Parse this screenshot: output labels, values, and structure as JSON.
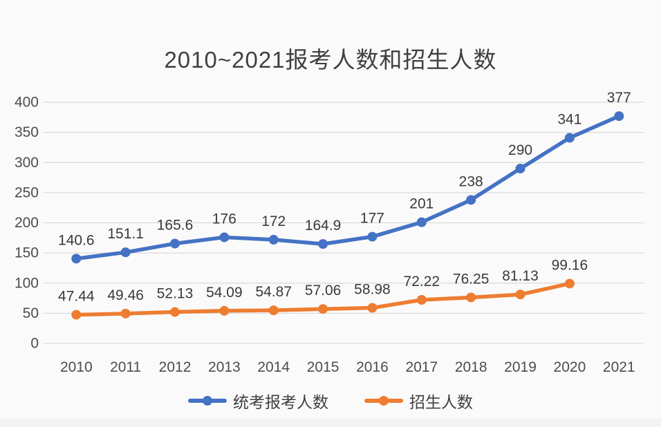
{
  "chart_data": {
    "type": "line",
    "title": "2010~2021报考人数和招生人数",
    "categories": [
      "2010",
      "2011",
      "2012",
      "2013",
      "2014",
      "2015",
      "2016",
      "2017",
      "2018",
      "2019",
      "2020",
      "2021"
    ],
    "series": [
      {
        "name": "统考报考人数",
        "color": "#4472C4",
        "values": [
          140.6,
          151.1,
          165.6,
          176,
          172,
          164.9,
          177,
          201,
          238,
          290,
          341,
          377
        ]
      },
      {
        "name": "招生人数",
        "color": "#ED7D31",
        "values": [
          47.44,
          49.46,
          52.13,
          54.09,
          54.87,
          57.06,
          58.98,
          72.22,
          76.25,
          81.13,
          99.16
        ]
      }
    ],
    "ylim": [
      0,
      400
    ],
    "ytick_step": 50,
    "yticks": [
      "0",
      "50",
      "100",
      "150",
      "200",
      "250",
      "300",
      "350",
      "400"
    ],
    "grid": true,
    "legend_position": "bottom",
    "grid_color": "#d9d9d9",
    "axis_color": "#4c4c4c",
    "label_color": "#3a3a3a",
    "title_color": "#3f3f3f"
  }
}
